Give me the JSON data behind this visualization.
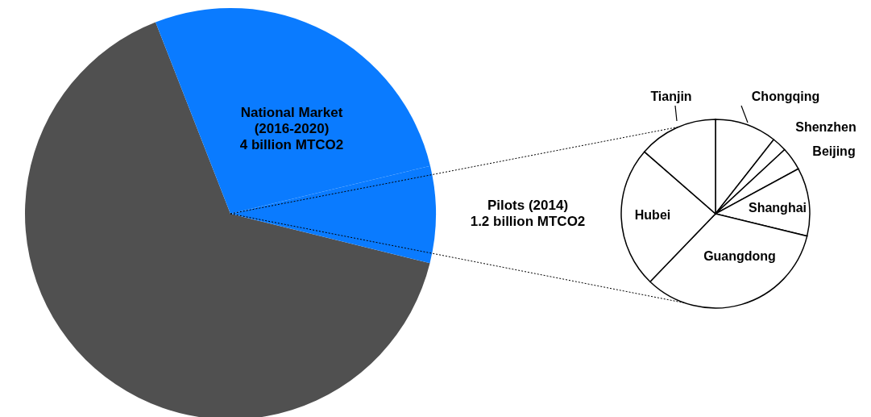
{
  "chart_data": [
    {
      "type": "pie",
      "categories": [
        null,
        "National Market\n(2016-2020)\n4 billion MTCO2",
        "Pilots (2014)\n1.2 billion MTCO2"
      ],
      "values": [
        65.2,
        27.2,
        7.6
      ],
      "colors": [
        "#505050",
        "#0a7bff",
        "#0a7bff"
      ]
    },
    {
      "type": "pie",
      "categories": [
        "Chongqing",
        "Shenzhen",
        "Beijing",
        "Shanghai",
        "Guangdong",
        "Hubei",
        "Tianjin"
      ],
      "values": [
        10.6,
        2.5,
        4.0,
        11.7,
        33.4,
        24.2,
        13.6
      ],
      "colors": [
        "#ffffff",
        "#ffffff",
        "#ffffff",
        "#ffffff",
        "#ffffff",
        "#ffffff",
        "#ffffff"
      ]
    }
  ]
}
